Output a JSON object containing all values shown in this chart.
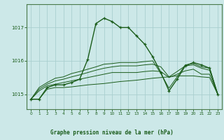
{
  "bg_color": "#cce8e8",
  "grid_color": "#aacfcf",
  "line_color": "#1a5c1a",
  "title": "Graphe pression niveau de la mer (hPa)",
  "xlim": [
    -0.5,
    23.5
  ],
  "ylim": [
    1014.55,
    1017.7
  ],
  "yticks": [
    1015,
    1016,
    1017
  ],
  "xticks": [
    0,
    1,
    2,
    3,
    4,
    5,
    6,
    7,
    8,
    9,
    10,
    11,
    12,
    13,
    14,
    15,
    16,
    17,
    18,
    19,
    20,
    21,
    22,
    23
  ],
  "fan_series": [
    [
      1014.85,
      1014.85,
      1015.15,
      1015.2,
      1015.2,
      1015.22,
      1015.25,
      1015.28,
      1015.3,
      1015.32,
      1015.35,
      1015.38,
      1015.4,
      1015.42,
      1015.45,
      1015.48,
      1015.5,
      1015.52,
      1015.55,
      1015.55,
      1015.55,
      1015.52,
      1015.5,
      1015.0
    ],
    [
      1014.85,
      1015.1,
      1015.25,
      1015.3,
      1015.35,
      1015.4,
      1015.45,
      1015.5,
      1015.55,
      1015.6,
      1015.65,
      1015.65,
      1015.65,
      1015.65,
      1015.68,
      1015.7,
      1015.68,
      1015.5,
      1015.6,
      1015.7,
      1015.75,
      1015.6,
      1015.6,
      1015.0
    ],
    [
      1014.85,
      1015.15,
      1015.3,
      1015.4,
      1015.45,
      1015.52,
      1015.58,
      1015.65,
      1015.72,
      1015.78,
      1015.82,
      1015.85,
      1015.85,
      1015.85,
      1015.88,
      1015.9,
      1015.82,
      1015.52,
      1015.68,
      1015.85,
      1015.88,
      1015.78,
      1015.72,
      1015.0
    ],
    [
      1014.85,
      1015.2,
      1015.35,
      1015.48,
      1015.52,
      1015.62,
      1015.68,
      1015.75,
      1015.82,
      1015.9,
      1015.92,
      1015.95,
      1015.95,
      1015.95,
      1015.98,
      1016.0,
      1015.62,
      1015.18,
      1015.52,
      1015.88,
      1015.92,
      1015.82,
      1015.78,
      1015.0
    ]
  ],
  "main_series_x": [
    0,
    1,
    2,
    3,
    4,
    5,
    6,
    7,
    8,
    9,
    10,
    11,
    12,
    13,
    14,
    15,
    16,
    17,
    18,
    19,
    20,
    21,
    22,
    23
  ],
  "main_series_y": [
    1014.85,
    1014.85,
    1015.2,
    1015.28,
    1015.28,
    1015.35,
    1015.45,
    1016.05,
    1017.12,
    1017.28,
    1017.18,
    1017.0,
    1017.0,
    1016.75,
    1016.5,
    1016.12,
    1015.65,
    1015.1,
    1015.45,
    1015.85,
    1015.95,
    1015.88,
    1015.78,
    1015.0
  ]
}
